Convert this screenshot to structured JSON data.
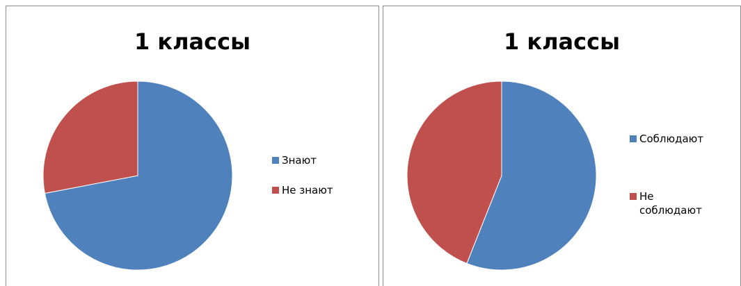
{
  "chart_data": [
    {
      "type": "pie",
      "title": "1 классы",
      "categories": [
        "Знают",
        "Не знают"
      ],
      "values": [
        72,
        28
      ],
      "colors": [
        "#4f81bd",
        "#c0504d"
      ],
      "legend": "right"
    },
    {
      "type": "pie",
      "title": "1 классы",
      "categories": [
        "Соблюдают",
        "Не соблюдают"
      ],
      "values": [
        56,
        44
      ],
      "colors": [
        "#4f81bd",
        "#c0504d"
      ],
      "legend": "right"
    }
  ]
}
